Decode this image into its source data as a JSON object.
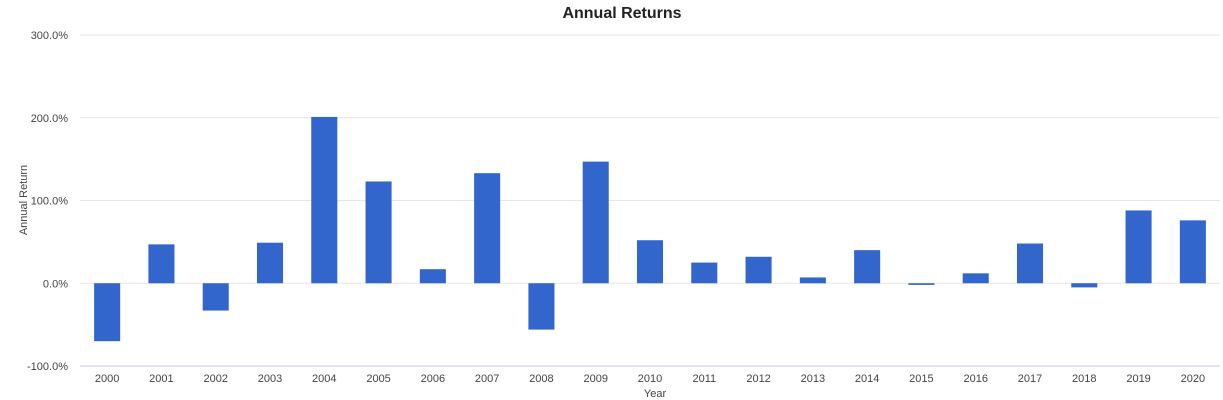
{
  "chart_data": {
    "type": "bar",
    "title": "Annual Returns",
    "xlabel": "Year",
    "ylabel": "Annual Return",
    "ylim": [
      -100,
      300
    ],
    "yticks": [
      {
        "value": 300,
        "label": "300.0%"
      },
      {
        "value": 200,
        "label": "200.0%"
      },
      {
        "value": 100,
        "label": "100.0%"
      },
      {
        "value": 0,
        "label": "0.0%"
      },
      {
        "value": -100,
        "label": "-100.0%"
      }
    ],
    "grid": true,
    "legend": "none",
    "bar_color": "#3366cc",
    "categories": [
      "2000",
      "2001",
      "2002",
      "2003",
      "2004",
      "2005",
      "2006",
      "2007",
      "2008",
      "2009",
      "2010",
      "2011",
      "2012",
      "2013",
      "2014",
      "2015",
      "2016",
      "2017",
      "2018",
      "2019",
      "2020"
    ],
    "values": [
      -70,
      47,
      -33,
      49,
      201,
      123,
      17,
      133,
      -56,
      147,
      52,
      25,
      32,
      7,
      40,
      -2,
      12,
      48,
      -5,
      88,
      76
    ]
  }
}
